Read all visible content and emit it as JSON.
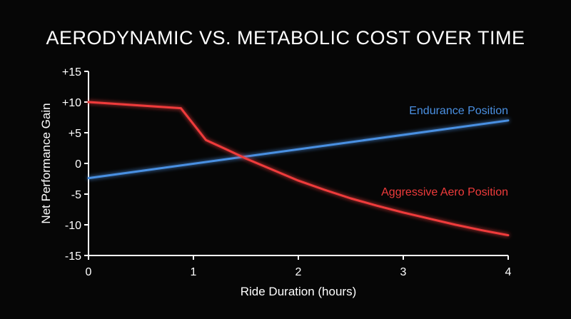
{
  "chart_data": {
    "type": "line",
    "title": "AERODYNAMIC VS. METABOLIC COST OVER TIME",
    "xlabel": "Ride Duration (hours)",
    "ylabel": "Net Performance Gain",
    "xlim": [
      0,
      4
    ],
    "ylim": [
      -15,
      15
    ],
    "x_ticks": [
      0,
      1,
      2,
      3,
      4
    ],
    "x_tick_labels": [
      "0",
      "1",
      "2",
      "3",
      "4"
    ],
    "y_ticks": [
      15,
      10,
      5,
      0,
      -5,
      -10,
      -15
    ],
    "y_tick_labels": [
      "+15",
      "+10",
      "+5",
      "0",
      "-5",
      "-10",
      "-15"
    ],
    "grid": false,
    "series": [
      {
        "name": "Endurance Position",
        "color": "#4a90e2",
        "x": [
          0,
          4
        ],
        "y": [
          -2.4,
          7.0
        ]
      },
      {
        "name": "Aggressive Aero Position",
        "color": "#ef3b3b",
        "x": [
          0,
          0.88,
          1.12,
          1.3,
          1.5,
          1.75,
          2.0,
          2.25,
          2.5,
          2.75,
          3.0,
          3.25,
          3.5,
          3.75,
          4.0
        ],
        "y": [
          10.0,
          9.0,
          3.8,
          2.4,
          0.8,
          -1.0,
          -2.8,
          -4.3,
          -5.7,
          -6.9,
          -8.0,
          -9.0,
          -10.0,
          -10.9,
          -11.7
        ]
      }
    ]
  }
}
